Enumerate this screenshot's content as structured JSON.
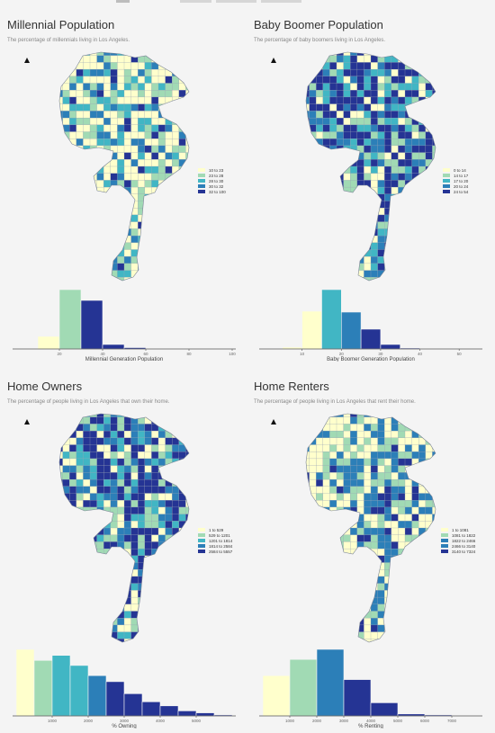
{
  "panels": [
    {
      "id": "millennial",
      "title": "Millennial Population",
      "subtitle": "The percentage of millennials living in Los Angeles.",
      "legend": [
        "10 to 23",
        "23 to 28",
        "28 to 30",
        "30 to 32",
        "32 to 100"
      ],
      "colors": [
        "#ffffcc",
        "#a1dab4",
        "#41b6c4",
        "#2c7fb8",
        "#253494"
      ],
      "map_weights": [
        0.42,
        0.24,
        0.15,
        0.12,
        0.07
      ],
      "chart_data": {
        "type": "bar",
        "xlabel": "Millennial Generation Population",
        "ticks": [
          20,
          40,
          60,
          80,
          100
        ],
        "xlim": [
          0,
          100
        ],
        "bins": [
          {
            "x0": 10,
            "x1": 20,
            "value": 14,
            "class": 0
          },
          {
            "x0": 20,
            "x1": 30,
            "value": 66,
            "class": 1
          },
          {
            "x0": 30,
            "x1": 40,
            "value": 54,
            "class": 4
          },
          {
            "x0": 40,
            "x1": 50,
            "value": 5,
            "class": 4
          },
          {
            "x0": 50,
            "x1": 60,
            "value": 1.5,
            "class": 4
          },
          {
            "x0": 60,
            "x1": 70,
            "value": 0.5,
            "class": 4
          }
        ]
      }
    },
    {
      "id": "boomer",
      "title": "Baby Boomer Population",
      "subtitle": "The percentage of baby boomers living in Los Angeles.",
      "legend": [
        "0 to 14",
        "14 to 17",
        "17 to 20",
        "20 to 24",
        "24 to 54"
      ],
      "colors": [
        "#ffffcc",
        "#a1dab4",
        "#41b6c4",
        "#2c7fb8",
        "#253494"
      ],
      "map_weights": [
        0.15,
        0.15,
        0.15,
        0.15,
        0.4
      ],
      "chart_data": {
        "type": "bar",
        "xlabel": "Baby Boomer Generation Population",
        "ticks": [
          10,
          20,
          30,
          40,
          50
        ],
        "xlim": [
          0,
          55
        ],
        "bins": [
          {
            "x0": 5,
            "x1": 10,
            "value": 2,
            "class": 0
          },
          {
            "x0": 10,
            "x1": 15,
            "value": 42,
            "class": 0
          },
          {
            "x0": 15,
            "x1": 20,
            "value": 66,
            "class": 2
          },
          {
            "x0": 20,
            "x1": 25,
            "value": 41,
            "class": 3
          },
          {
            "x0": 25,
            "x1": 30,
            "value": 22,
            "class": 4
          },
          {
            "x0": 30,
            "x1": 35,
            "value": 5,
            "class": 4
          },
          {
            "x0": 35,
            "x1": 40,
            "value": 1,
            "class": 4
          }
        ]
      }
    },
    {
      "id": "owners",
      "title": "Home Owners",
      "subtitle": "The percentage of people living in Los Angeles that own their home.",
      "legend": [
        "1 to 529",
        "529 to 1201",
        "1201 to 1814",
        "1814 to 2584",
        "2584 to 5557"
      ],
      "colors": [
        "#ffffcc",
        "#a1dab4",
        "#41b6c4",
        "#2c7fb8",
        "#253494"
      ],
      "map_weights": [
        0.16,
        0.14,
        0.16,
        0.16,
        0.38
      ],
      "chart_data": {
        "type": "bar",
        "xlabel": "% Owning",
        "ticks": [
          1000,
          2000,
          3000,
          4000,
          5000
        ],
        "xlim": [
          0,
          6000
        ],
        "bins": [
          {
            "x0": 0,
            "x1": 500,
            "value": 66,
            "class": 0
          },
          {
            "x0": 500,
            "x1": 1000,
            "value": 55,
            "class": 1
          },
          {
            "x0": 1000,
            "x1": 1500,
            "value": 60,
            "class": 2
          },
          {
            "x0": 1500,
            "x1": 2000,
            "value": 50,
            "class": 2
          },
          {
            "x0": 2000,
            "x1": 2500,
            "value": 40,
            "class": 3
          },
          {
            "x0": 2500,
            "x1": 3000,
            "value": 34,
            "class": 4
          },
          {
            "x0": 3000,
            "x1": 3500,
            "value": 22,
            "class": 4
          },
          {
            "x0": 3500,
            "x1": 4000,
            "value": 14,
            "class": 4
          },
          {
            "x0": 4000,
            "x1": 4500,
            "value": 10,
            "class": 4
          },
          {
            "x0": 4500,
            "x1": 5000,
            "value": 5,
            "class": 4
          },
          {
            "x0": 5000,
            "x1": 5500,
            "value": 3,
            "class": 4
          },
          {
            "x0": 5500,
            "x1": 6000,
            "value": 1,
            "class": 4
          }
        ]
      }
    },
    {
      "id": "renters",
      "title": "Home Renters",
      "subtitle": "The percentage of people living in Los Angeles that rent their home.",
      "legend": [
        "1 to 1081",
        "1081 to 1822",
        "1822 to 2466",
        "2466 to 3140",
        "3140 to 7324"
      ],
      "colors": [
        "#ffffcc",
        "#a1dab4",
        "#2c7fb8",
        "#2c7fb8",
        "#253494"
      ],
      "map_weights": [
        0.42,
        0.22,
        0.14,
        0.12,
        0.1
      ],
      "chart_data": {
        "type": "bar",
        "xlabel": "% Renting",
        "ticks": [
          1000,
          2000,
          3000,
          4000,
          5000,
          6000,
          7000
        ],
        "xlim": [
          0,
          8000
        ],
        "bins": [
          {
            "x0": 0,
            "x1": 1000,
            "value": 40,
            "class": 0
          },
          {
            "x0": 1000,
            "x1": 2000,
            "value": 56,
            "class": 1
          },
          {
            "x0": 2000,
            "x1": 3000,
            "value": 66,
            "class": 2
          },
          {
            "x0": 3000,
            "x1": 4000,
            "value": 36,
            "class": 4
          },
          {
            "x0": 4000,
            "x1": 5000,
            "value": 13,
            "class": 4
          },
          {
            "x0": 5000,
            "x1": 6000,
            "value": 2,
            "class": 4
          },
          {
            "x0": 6000,
            "x1": 7000,
            "value": 1,
            "class": 4
          }
        ]
      }
    }
  ]
}
